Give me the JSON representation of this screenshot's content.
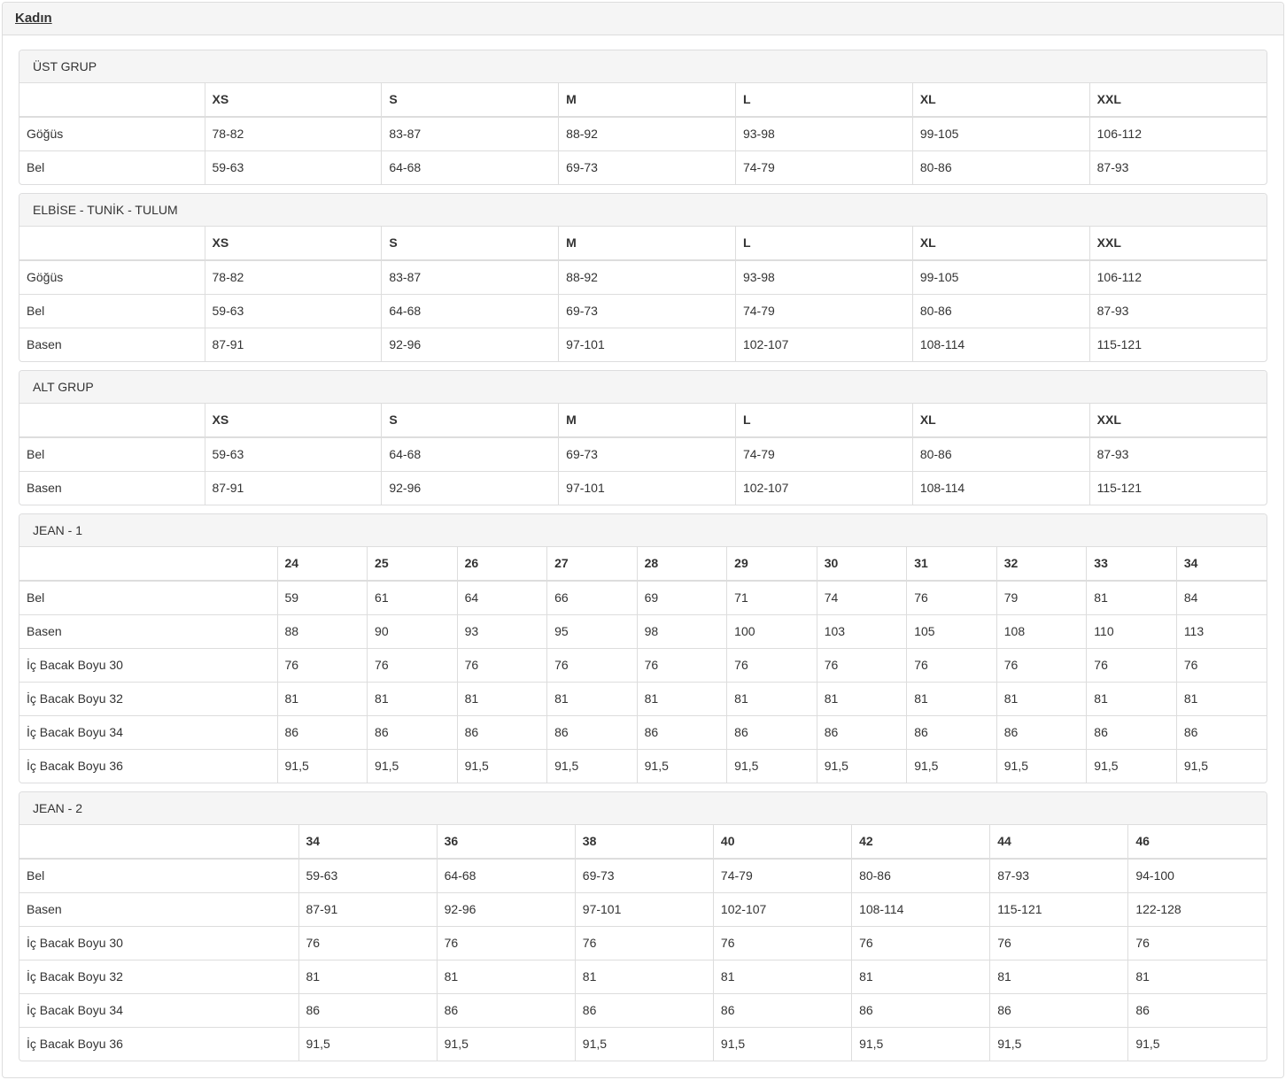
{
  "page": {
    "title": "Kadın"
  },
  "colors": {
    "heading_bg": "#f5f5f5",
    "panel_border": "#dddddd",
    "text": "#333333"
  },
  "tables": [
    {
      "id": "ust-grup",
      "heading": "ÜST GRUP",
      "columns": [
        "XS",
        "S",
        "M",
        "L",
        "XL",
        "XXL"
      ],
      "rows": [
        {
          "label": "Göğüs",
          "values": [
            "78-82",
            "83-87",
            "88-92",
            "93-98",
            "99-105",
            "106-112"
          ]
        },
        {
          "label": "Bel",
          "values": [
            "59-63",
            "64-68",
            "69-73",
            "74-79",
            "80-86",
            "87-93"
          ]
        }
      ]
    },
    {
      "id": "elbise-tunik-tulum",
      "heading": "ELBİSE - TUNİK - TULUM",
      "columns": [
        "XS",
        "S",
        "M",
        "L",
        "XL",
        "XXL"
      ],
      "rows": [
        {
          "label": "Göğüs",
          "values": [
            "78-82",
            "83-87",
            "88-92",
            "93-98",
            "99-105",
            "106-112"
          ]
        },
        {
          "label": "Bel",
          "values": [
            "59-63",
            "64-68",
            "69-73",
            "74-79",
            "80-86",
            "87-93"
          ]
        },
        {
          "label": "Basen",
          "values": [
            "87-91",
            "92-96",
            "97-101",
            "102-107",
            "108-114",
            "115-121"
          ]
        }
      ]
    },
    {
      "id": "alt-grup",
      "heading": "ALT GRUP",
      "columns": [
        "XS",
        "S",
        "M",
        "L",
        "XL",
        "XXL"
      ],
      "rows": [
        {
          "label": "Bel",
          "values": [
            "59-63",
            "64-68",
            "69-73",
            "74-79",
            "80-86",
            "87-93"
          ]
        },
        {
          "label": "Basen",
          "values": [
            "87-91",
            "92-96",
            "97-101",
            "102-107",
            "108-114",
            "115-121"
          ]
        }
      ]
    },
    {
      "id": "jean-1",
      "heading": "JEAN - 1",
      "columns": [
        "24",
        "25",
        "26",
        "27",
        "28",
        "29",
        "30",
        "31",
        "32",
        "33",
        "34"
      ],
      "rows": [
        {
          "label": "Bel",
          "values": [
            "59",
            "61",
            "64",
            "66",
            "69",
            "71",
            "74",
            "76",
            "79",
            "81",
            "84"
          ]
        },
        {
          "label": "Basen",
          "values": [
            "88",
            "90",
            "93",
            "95",
            "98",
            "100",
            "103",
            "105",
            "108",
            "110",
            "113"
          ]
        },
        {
          "label": "İç Bacak Boyu 30",
          "values": [
            "76",
            "76",
            "76",
            "76",
            "76",
            "76",
            "76",
            "76",
            "76",
            "76",
            "76"
          ]
        },
        {
          "label": "İç Bacak Boyu 32",
          "values": [
            "81",
            "81",
            "81",
            "81",
            "81",
            "81",
            "81",
            "81",
            "81",
            "81",
            "81"
          ]
        },
        {
          "label": "İç Bacak Boyu 34",
          "values": [
            "86",
            "86",
            "86",
            "86",
            "86",
            "86",
            "86",
            "86",
            "86",
            "86",
            "86"
          ]
        },
        {
          "label": "İç Bacak Boyu 36",
          "values": [
            "91,5",
            "91,5",
            "91,5",
            "91,5",
            "91,5",
            "91,5",
            "91,5",
            "91,5",
            "91,5",
            "91,5",
            "91,5"
          ]
        }
      ]
    },
    {
      "id": "jean-2",
      "heading": "JEAN - 2",
      "columns": [
        "34",
        "36",
        "38",
        "40",
        "42",
        "44",
        "46"
      ],
      "rows": [
        {
          "label": "Bel",
          "values": [
            "59-63",
            "64-68",
            "69-73",
            "74-79",
            "80-86",
            "87-93",
            "94-100"
          ]
        },
        {
          "label": "Basen",
          "values": [
            "87-91",
            "92-96",
            "97-101",
            "102-107",
            "108-114",
            "115-121",
            "122-128"
          ]
        },
        {
          "label": "İç Bacak Boyu 30",
          "values": [
            "76",
            "76",
            "76",
            "76",
            "76",
            "76",
            "76"
          ]
        },
        {
          "label": "İç Bacak Boyu 32",
          "values": [
            "81",
            "81",
            "81",
            "81",
            "81",
            "81",
            "81"
          ]
        },
        {
          "label": "İç Bacak Boyu 34",
          "values": [
            "86",
            "86",
            "86",
            "86",
            "86",
            "86",
            "86"
          ]
        },
        {
          "label": "İç Bacak Boyu 36",
          "values": [
            "91,5",
            "91,5",
            "91,5",
            "91,5",
            "91,5",
            "91,5",
            "91,5"
          ]
        }
      ]
    }
  ]
}
